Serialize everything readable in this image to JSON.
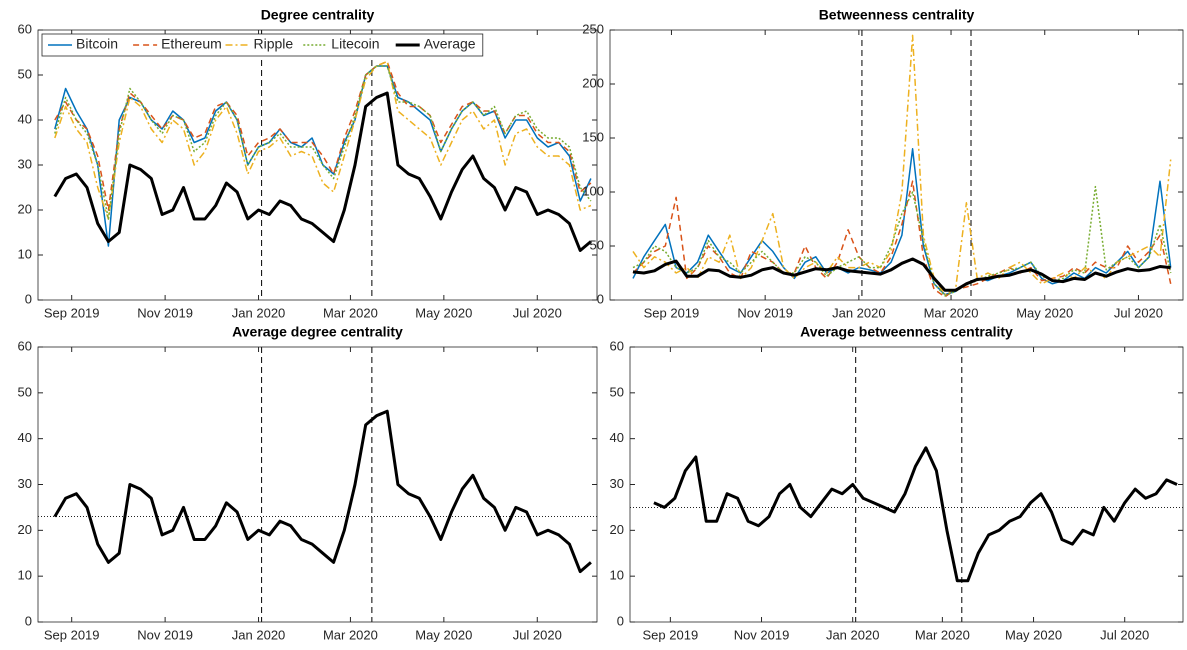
{
  "chart_data": [
    {
      "type": "line",
      "title": "Degree centrality",
      "legend": "upper left",
      "xlim": [
        9,
        374
      ],
      "ylim": [
        0,
        60
      ],
      "yticks": [
        0,
        10,
        20,
        30,
        40,
        50,
        60
      ],
      "xticks": [
        {
          "value": 31,
          "label": "Sep 2019"
        },
        {
          "value": 92,
          "label": "Nov 2019"
        },
        {
          "value": 153,
          "label": "Jan 2020"
        },
        {
          "value": 213,
          "label": "Mar 2020"
        },
        {
          "value": 274,
          "label": "May 2020"
        },
        {
          "value": 335,
          "label": "Jul 2020"
        }
      ],
      "vlines": [
        155,
        227
      ],
      "x": [
        20,
        27,
        34,
        41,
        48,
        55,
        62,
        69,
        76,
        83,
        90,
        97,
        104,
        111,
        118,
        125,
        132,
        139,
        146,
        153,
        160,
        167,
        174,
        181,
        188,
        195,
        202,
        209,
        216,
        223,
        230,
        237,
        244,
        251,
        258,
        265,
        272,
        279,
        286,
        293,
        300,
        307,
        314,
        321,
        328,
        335,
        342,
        349,
        356,
        363,
        370
      ],
      "series": [
        {
          "name": "Bitcoin",
          "color": "#0072bd",
          "style": "solid",
          "width": 1.5,
          "values": [
            38,
            47,
            42,
            38,
            30,
            12,
            40,
            45,
            44,
            40,
            38,
            42,
            40,
            35,
            36,
            42,
            44,
            40,
            30,
            34,
            35,
            38,
            35,
            34,
            36,
            30,
            28,
            35,
            40,
            50,
            52,
            52,
            45,
            44,
            42,
            40,
            33,
            38,
            42,
            44,
            41,
            42,
            36,
            40,
            40,
            36,
            34,
            35,
            32,
            22,
            27
          ]
        },
        {
          "name": "Ethereum",
          "color": "#d95319",
          "style": "dashed",
          "width": 1.5,
          "values": [
            40,
            44,
            40,
            38,
            32,
            20,
            38,
            46,
            44,
            41,
            38,
            41,
            40,
            36,
            37,
            43,
            44,
            41,
            32,
            35,
            36,
            38,
            35,
            35,
            35,
            32,
            28,
            36,
            42,
            50,
            52,
            53,
            46,
            43,
            43,
            41,
            35,
            39,
            43,
            44,
            42,
            42,
            37,
            41,
            41,
            37,
            35,
            35,
            33,
            24,
            26
          ]
        },
        {
          "name": "Ripple",
          "color": "#edb120",
          "style": "dashdot",
          "width": 1.5,
          "values": [
            36,
            43,
            38,
            35,
            25,
            18,
            35,
            45,
            43,
            38,
            35,
            40,
            38,
            30,
            33,
            40,
            43,
            37,
            28,
            33,
            34,
            36,
            32,
            33,
            32,
            26,
            24,
            32,
            40,
            49,
            52,
            53,
            42,
            40,
            38,
            36,
            30,
            35,
            40,
            42,
            38,
            40,
            30,
            37,
            38,
            34,
            32,
            32,
            30,
            20,
            21
          ]
        },
        {
          "name": "Litecoin",
          "color": "#77ac30",
          "style": "dotted",
          "width": 1.5,
          "values": [
            37,
            45,
            40,
            37,
            30,
            18,
            37,
            47,
            44,
            40,
            37,
            41,
            40,
            33,
            35,
            41,
            44,
            40,
            30,
            34,
            35,
            37,
            34,
            34,
            34,
            30,
            27,
            34,
            41,
            50,
            52,
            52,
            44,
            44,
            43,
            41,
            33,
            38,
            42,
            44,
            41,
            43,
            37,
            41,
            42,
            38,
            36,
            36,
            34,
            25,
            22
          ]
        },
        {
          "name": "Average",
          "color": "#000000",
          "style": "solid",
          "width": 3,
          "values": [
            23,
            27,
            28,
            25,
            17,
            13,
            15,
            30,
            29,
            27,
            19,
            20,
            25,
            18,
            18,
            21,
            26,
            24,
            18,
            20,
            19,
            22,
            21,
            18,
            17,
            15,
            13,
            20,
            30,
            43,
            45,
            46,
            30,
            28,
            27,
            23,
            18,
            24,
            29,
            32,
            27,
            25,
            20,
            25,
            24,
            19,
            20,
            19,
            17,
            11,
            13
          ]
        }
      ]
    },
    {
      "type": "line",
      "title": "Betweenness centrality",
      "xlim": [
        -9,
        364
      ],
      "ylim": [
        0,
        250
      ],
      "yticks": [
        0,
        50,
        100,
        150,
        200,
        250
      ],
      "xticks": [
        {
          "value": 31,
          "label": "Sep 2019"
        },
        {
          "value": 92,
          "label": "Nov 2019"
        },
        {
          "value": 153,
          "label": "Jan 2020"
        },
        {
          "value": 213,
          "label": "Mar 2020"
        },
        {
          "value": 274,
          "label": "May 2020"
        },
        {
          "value": 335,
          "label": "Jul 2020"
        }
      ],
      "vlines": [
        155,
        226
      ],
      "x": [
        6,
        13,
        20,
        27,
        34,
        41,
        48,
        55,
        62,
        69,
        76,
        83,
        90,
        97,
        104,
        111,
        118,
        125,
        132,
        139,
        146,
        153,
        160,
        167,
        174,
        181,
        188,
        195,
        202,
        209,
        216,
        223,
        230,
        237,
        244,
        251,
        258,
        265,
        272,
        279,
        286,
        293,
        300,
        307,
        314,
        321,
        328,
        335,
        342,
        349,
        356
      ],
      "series": [
        {
          "name": "Bitcoin",
          "color": "#0072bd",
          "style": "solid",
          "width": 1.5,
          "values": [
            20,
            40,
            55,
            70,
            30,
            25,
            35,
            60,
            45,
            30,
            25,
            40,
            55,
            45,
            30,
            20,
            35,
            40,
            25,
            30,
            25,
            30,
            28,
            25,
            35,
            60,
            140,
            50,
            15,
            5,
            8,
            15,
            20,
            18,
            22,
            25,
            30,
            35,
            20,
            15,
            18,
            25,
            20,
            30,
            25,
            35,
            45,
            30,
            40,
            110,
            30
          ]
        },
        {
          "name": "Ethereum",
          "color": "#d95319",
          "style": "dashed",
          "width": 1.5,
          "values": [
            25,
            35,
            45,
            50,
            95,
            20,
            30,
            50,
            40,
            25,
            20,
            45,
            40,
            35,
            25,
            25,
            50,
            30,
            20,
            35,
            65,
            40,
            30,
            25,
            40,
            70,
            110,
            40,
            10,
            3,
            10,
            12,
            15,
            20,
            25,
            30,
            25,
            30,
            18,
            20,
            22,
            30,
            25,
            35,
            30,
            30,
            50,
            35,
            45,
            60,
            15
          ]
        },
        {
          "name": "Ripple",
          "color": "#edb120",
          "style": "dashdot",
          "width": 1.5,
          "values": [
            45,
            30,
            40,
            35,
            25,
            30,
            20,
            40,
            35,
            60,
            20,
            30,
            55,
            80,
            30,
            20,
            30,
            35,
            25,
            40,
            30,
            30,
            35,
            30,
            45,
            100,
            245,
            60,
            20,
            5,
            10,
            90,
            20,
            25,
            20,
            30,
            35,
            25,
            15,
            20,
            25,
            20,
            30,
            25,
            20,
            35,
            40,
            45,
            50,
            40,
            130
          ]
        },
        {
          "name": "Litecoin",
          "color": "#77ac30",
          "style": "dotted",
          "width": 1.5,
          "values": [
            30,
            35,
            50,
            45,
            30,
            25,
            30,
            55,
            40,
            35,
            25,
            35,
            45,
            35,
            25,
            25,
            40,
            35,
            22,
            30,
            35,
            40,
            30,
            30,
            50,
            80,
            100,
            55,
            15,
            4,
            8,
            14,
            18,
            22,
            25,
            28,
            30,
            35,
            22,
            18,
            20,
            28,
            25,
            105,
            28,
            35,
            40,
            30,
            40,
            70,
            25
          ]
        },
        {
          "name": "Average",
          "color": "#000000",
          "style": "solid",
          "width": 3,
          "values": [
            26,
            25,
            27,
            33,
            36,
            22,
            22,
            28,
            27,
            22,
            21,
            23,
            28,
            30,
            25,
            23,
            26,
            29,
            28,
            30,
            27,
            26,
            25,
            24,
            28,
            34,
            38,
            33,
            20,
            9,
            9,
            15,
            19,
            20,
            22,
            23,
            26,
            28,
            24,
            18,
            17,
            20,
            19,
            25,
            22,
            26,
            29,
            27,
            28,
            31,
            30
          ]
        }
      ]
    },
    {
      "type": "line",
      "title": "Average degree centrality",
      "xlim": [
        9,
        374
      ],
      "ylim": [
        0,
        60
      ],
      "yticks": [
        0,
        10,
        20,
        30,
        40,
        50,
        60
      ],
      "xticks": [
        {
          "value": 31,
          "label": "Sep 2019"
        },
        {
          "value": 92,
          "label": "Nov 2019"
        },
        {
          "value": 153,
          "label": "Jan 2020"
        },
        {
          "value": 213,
          "label": "Mar 2020"
        },
        {
          "value": 274,
          "label": "May 2020"
        },
        {
          "value": 335,
          "label": "Jul 2020"
        }
      ],
      "vlines": [
        155,
        227
      ],
      "hline": 23,
      "x": [
        20,
        27,
        34,
        41,
        48,
        55,
        62,
        69,
        76,
        83,
        90,
        97,
        104,
        111,
        118,
        125,
        132,
        139,
        146,
        153,
        160,
        167,
        174,
        181,
        188,
        195,
        202,
        209,
        216,
        223,
        230,
        237,
        244,
        251,
        258,
        265,
        272,
        279,
        286,
        293,
        300,
        307,
        314,
        321,
        328,
        335,
        342,
        349,
        356,
        363,
        370
      ],
      "series": [
        {
          "color": "#000000",
          "style": "solid",
          "width": 3,
          "values": [
            23,
            27,
            28,
            25,
            17,
            13,
            15,
            30,
            29,
            27,
            19,
            20,
            25,
            18,
            18,
            21,
            26,
            24,
            18,
            20,
            19,
            22,
            21,
            18,
            17,
            15,
            13,
            20,
            30,
            43,
            45,
            46,
            30,
            28,
            27,
            23,
            18,
            24,
            29,
            32,
            27,
            25,
            20,
            25,
            24,
            19,
            20,
            19,
            17,
            11,
            13
          ]
        }
      ]
    },
    {
      "type": "line",
      "title": "Average betweenness centrality",
      "xlim": [
        4,
        374
      ],
      "ylim": [
        0,
        60
      ],
      "yticks": [
        0,
        10,
        20,
        30,
        40,
        50,
        60
      ],
      "xticks": [
        {
          "value": 31,
          "label": "Sep 2019"
        },
        {
          "value": 92,
          "label": "Nov 2019"
        },
        {
          "value": 153,
          "label": "Jan 2020"
        },
        {
          "value": 213,
          "label": "Mar 2020"
        },
        {
          "value": 274,
          "label": "May 2020"
        },
        {
          "value": 335,
          "label": "Jul 2020"
        }
      ],
      "vlines": [
        155,
        226
      ],
      "hline": 25,
      "x": [
        20,
        27,
        34,
        41,
        48,
        55,
        62,
        69,
        76,
        83,
        90,
        97,
        104,
        111,
        118,
        125,
        132,
        139,
        146,
        153,
        160,
        167,
        174,
        181,
        188,
        195,
        202,
        209,
        216,
        223,
        230,
        237,
        244,
        251,
        258,
        265,
        272,
        279,
        286,
        293,
        300,
        307,
        314,
        321,
        328,
        335,
        342,
        349,
        356,
        363,
        370
      ],
      "series": [
        {
          "color": "#000000",
          "style": "solid",
          "width": 3,
          "values": [
            26,
            25,
            27,
            33,
            36,
            22,
            22,
            28,
            27,
            22,
            21,
            23,
            28,
            30,
            25,
            23,
            26,
            29,
            28,
            30,
            27,
            26,
            25,
            24,
            28,
            34,
            38,
            33,
            20,
            9,
            9,
            15,
            19,
            20,
            22,
            23,
            26,
            28,
            24,
            18,
            17,
            20,
            19,
            25,
            22,
            26,
            29,
            27,
            28,
            31,
            30
          ]
        }
      ]
    }
  ]
}
